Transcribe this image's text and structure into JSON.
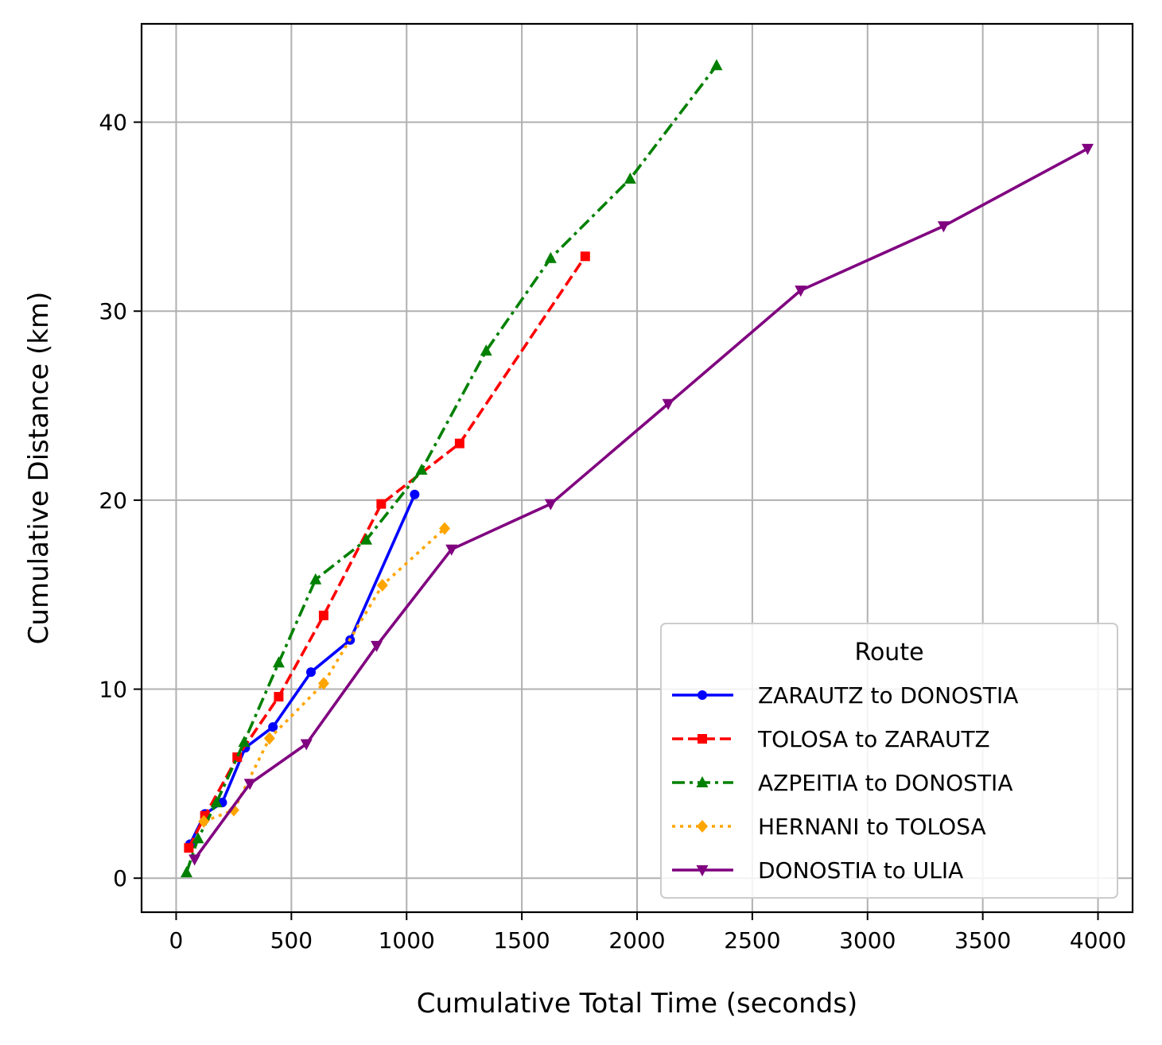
{
  "chart_data": {
    "type": "line",
    "title": "",
    "xlabel": "Cumulative Total Time (seconds)",
    "ylabel": "Cumulative Distance (km)",
    "xlim": [
      -150,
      4150
    ],
    "ylim": [
      -1.8,
      45.2
    ],
    "xticks": [
      0,
      500,
      1000,
      1500,
      2000,
      2500,
      3000,
      3500,
      4000
    ],
    "yticks": [
      0,
      10,
      20,
      30,
      40
    ],
    "grid": true,
    "legend": {
      "title": "Route",
      "placement": "lower-right"
    },
    "series": [
      {
        "name": "ZARAUTZ to DONOSTIA",
        "color": "#0000ff",
        "dash": "solid",
        "marker": "circle",
        "x": [
          60,
          125,
          200,
          300,
          420,
          585,
          755,
          1035
        ],
        "y": [
          1.8,
          3.4,
          4.0,
          6.9,
          8.0,
          10.9,
          12.6,
          20.3
        ]
      },
      {
        "name": "TOLOSA to ZARAUTZ",
        "color": "#ff0000",
        "dash": "dashed",
        "marker": "square",
        "x": [
          55,
          125,
          265,
          445,
          640,
          890,
          1230,
          1775
        ],
        "y": [
          1.6,
          3.3,
          6.4,
          9.6,
          13.9,
          19.8,
          23.0,
          32.9
        ]
      },
      {
        "name": "AZPEITIA to DONOSTIA",
        "color": "#008000",
        "dash": "dashdot",
        "marker": "triangle-up",
        "x": [
          45,
          95,
          175,
          295,
          445,
          605,
          825,
          1065,
          1345,
          1625,
          1970,
          2345
        ],
        "y": [
          0.3,
          2.1,
          4.0,
          7.2,
          11.4,
          15.8,
          17.9,
          21.6,
          27.9,
          32.8,
          37.0,
          43.0
        ]
      },
      {
        "name": "HERNANI to TOLOSA",
        "color": "#ffa500",
        "dash": "dotted",
        "marker": "diamond",
        "x": [
          120,
          250,
          405,
          640,
          895,
          1165
        ],
        "y": [
          3.0,
          3.6,
          7.4,
          10.3,
          15.5,
          18.5
        ]
      },
      {
        "name": "DONOSTIA to ULIA",
        "color": "#800080",
        "dash": "solid",
        "marker": "triangle-down",
        "x": [
          80,
          320,
          565,
          870,
          1195,
          1625,
          2135,
          2710,
          3330,
          3955
        ],
        "y": [
          1.0,
          5.0,
          7.1,
          12.3,
          17.4,
          19.8,
          25.1,
          31.1,
          34.5,
          38.6
        ]
      }
    ]
  }
}
